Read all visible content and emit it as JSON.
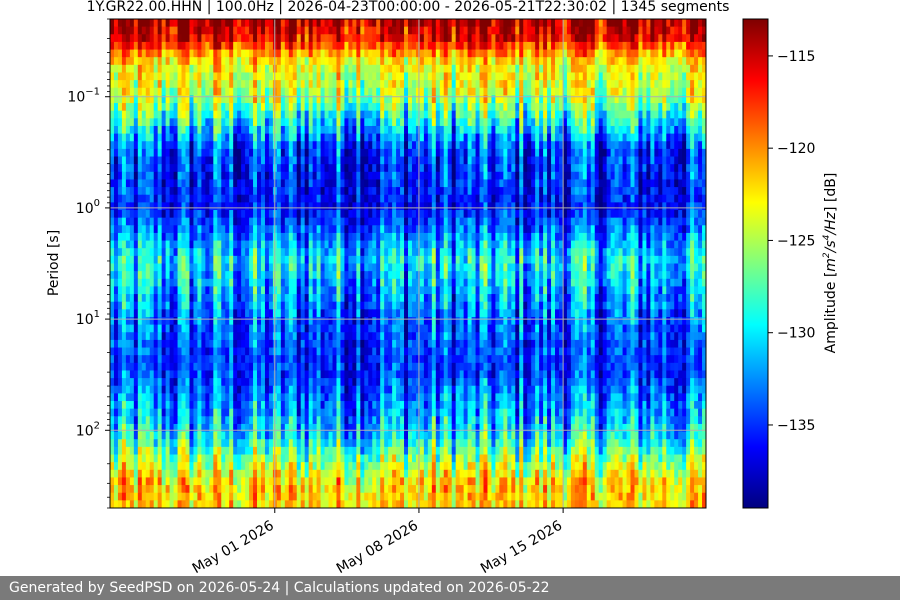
{
  "chart_data": {
    "type": "heatmap",
    "title": "1Y.GR22.00.HHN | 100.0Hz | 2026-04-23T00:00:00 - 2026-05-21T22:30:02 | 1345 segments",
    "xlabel": "",
    "ylabel": "Period [s]",
    "x_scale": "time",
    "xlim": [
      "2026-04-23T00:00:00",
      "2026-05-21T22:30:02"
    ],
    "x_ticks": [
      {
        "value": "2026-05-01",
        "label": "May 01 2026"
      },
      {
        "value": "2026-05-08",
        "label": "May 08 2026"
      },
      {
        "value": "2026-05-15",
        "label": "May 15 2026"
      }
    ],
    "y_scale": "log",
    "y_inverted": true,
    "ylim": [
      0.02,
      500
    ],
    "y_ticks": [
      {
        "value": 0.1,
        "base": "10",
        "exp": "−1"
      },
      {
        "value": 1,
        "base": "10",
        "exp": "0"
      },
      {
        "value": 10,
        "base": "10",
        "exp": "1"
      },
      {
        "value": 100,
        "base": "10",
        "exp": "2"
      }
    ],
    "grid": true,
    "colorbar": {
      "label": "Amplitude [m²/s⁴/Hz] [dB]",
      "label_prefix": "Amplitude [",
      "label_unit": {
        "m": "m",
        "m_exp": "2",
        "sep1": "/s",
        "s_exp": "4",
        "tail": "/Hz"
      },
      "label_suffix": "] [dB]",
      "range": [
        -139.5,
        -113
      ],
      "ticks": [
        {
          "value": -115,
          "label": "−115"
        },
        {
          "value": -120,
          "label": "−120"
        },
        {
          "value": -125,
          "label": "−125"
        },
        {
          "value": -130,
          "label": "−130"
        },
        {
          "value": -135,
          "label": "−135"
        }
      ],
      "colormap": "jet"
    },
    "segments": 1345,
    "amplitude_profile_db": [
      {
        "period": 0.02,
        "value": -114
      },
      {
        "period": 0.03,
        "value": -116
      },
      {
        "period": 0.05,
        "value": -123
      },
      {
        "period": 0.1,
        "value": -125
      },
      {
        "period": 0.3,
        "value": -135
      },
      {
        "period": 1,
        "value": -136
      },
      {
        "period": 3,
        "value": -130
      },
      {
        "period": 10,
        "value": -134
      },
      {
        "period": 30,
        "value": -135
      },
      {
        "period": 100,
        "value": -131
      },
      {
        "period": 300,
        "value": -122
      }
    ]
  },
  "footer": {
    "text": "Generated by SeedPSD on 2026-05-24 | Calculations updated on 2026-05-22"
  }
}
